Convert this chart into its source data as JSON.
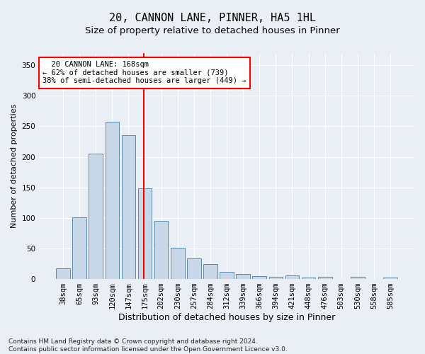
{
  "title1": "20, CANNON LANE, PINNER, HA5 1HL",
  "title2": "Size of property relative to detached houses in Pinner",
  "xlabel": "Distribution of detached houses by size in Pinner",
  "ylabel": "Number of detached properties",
  "footnote": "Contains HM Land Registry data © Crown copyright and database right 2024.\nContains public sector information licensed under the Open Government Licence v3.0.",
  "categories": [
    "38sqm",
    "65sqm",
    "93sqm",
    "120sqm",
    "147sqm",
    "175sqm",
    "202sqm",
    "230sqm",
    "257sqm",
    "284sqm",
    "312sqm",
    "339sqm",
    "366sqm",
    "394sqm",
    "421sqm",
    "448sqm",
    "476sqm",
    "503sqm",
    "530sqm",
    "558sqm",
    "585sqm"
  ],
  "values": [
    18,
    101,
    205,
    257,
    235,
    149,
    95,
    51,
    34,
    25,
    12,
    8,
    5,
    4,
    6,
    2,
    3,
    0,
    3,
    0,
    2
  ],
  "bar_color": "#c8d8e8",
  "bar_edge_color": "#5a8ab0",
  "vline_x": 4.925,
  "vline_color": "red",
  "annotation_text": "  20 CANNON LANE: 168sqm\n← 62% of detached houses are smaller (739)\n38% of semi-detached houses are larger (449) →",
  "annotation_box_color": "white",
  "annotation_box_edge": "red",
  "ylim": [
    0,
    370
  ],
  "yticks": [
    0,
    50,
    100,
    150,
    200,
    250,
    300,
    350
  ],
  "background_color": "#eaeff5",
  "plot_bg_color": "#eaeff5",
  "grid_color": "white",
  "title1_fontsize": 11,
  "title2_fontsize": 9.5,
  "xlabel_fontsize": 9,
  "ylabel_fontsize": 8,
  "tick_fontsize": 7.5,
  "footnote_fontsize": 6.5
}
